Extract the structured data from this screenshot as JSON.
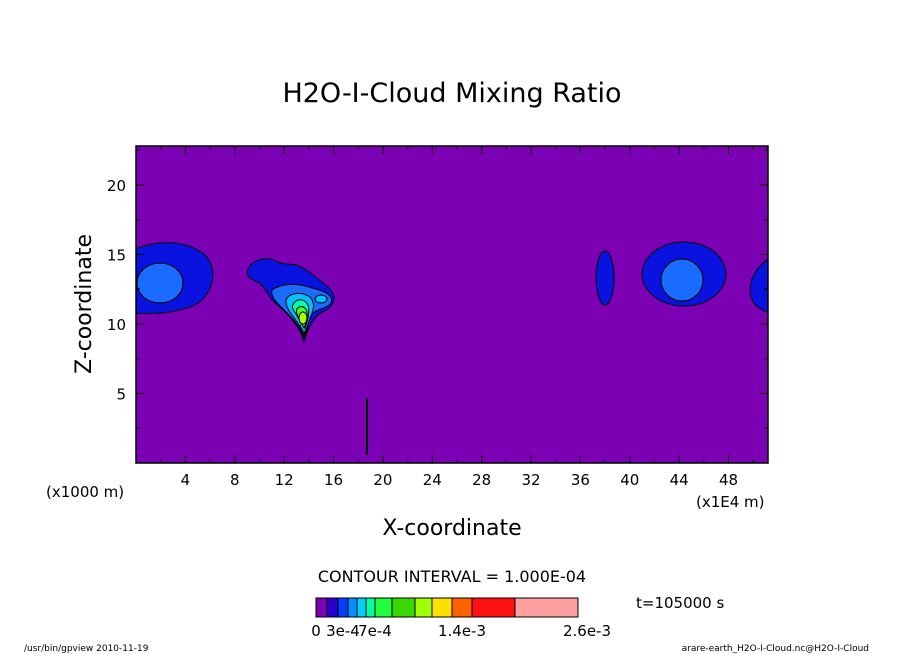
{
  "chart_data": {
    "type": "contour",
    "title": "H2O-I-Cloud Mixing Ratio",
    "xlabel": "X-coordinate",
    "ylabel": "Z-coordinate",
    "x_unit": "(x1E4 m)",
    "y_unit": "(x1000 m)",
    "x_ticks": [
      4,
      8,
      12,
      16,
      20,
      24,
      28,
      32,
      36,
      40,
      44,
      48
    ],
    "y_ticks": [
      5,
      10,
      15,
      20
    ],
    "xlim": [
      0,
      51.2
    ],
    "ylim": [
      0,
      22.8
    ],
    "contour_interval": "CONTOUR INTERVAL = 1.000E-04",
    "time_label": "t=105000 s",
    "colorbar": {
      "labels": [
        "0",
        "3e-4",
        "7e-4",
        "1.4e-3",
        "2.6e-3"
      ],
      "colors": [
        "#7c00b4",
        "#2800d0",
        "#0040ff",
        "#0090ff",
        "#00d0ff",
        "#00ffa0",
        "#20ff40",
        "#38d800",
        "#a0ff00",
        "#ffe000",
        "#ff6000",
        "#ff1010",
        "#ffa0a0"
      ]
    },
    "field_levels": {
      "background": "#7c00b4",
      "level1": "#0a12e0",
      "level2": "#1a6cff",
      "level3": "#00c0ff",
      "level4": "#00ffb0",
      "level5": "#40ff20",
      "level6": "#b0ff00"
    },
    "cloud_regions": [
      {
        "name": "left-edge-cloud",
        "x_range": [
          0,
          6.5
        ],
        "z_range": [
          11,
          16.4
        ]
      },
      {
        "name": "central-cloud",
        "x_range": [
          9,
          16
        ],
        "z_range": [
          9,
          15.2
        ]
      },
      {
        "name": "narrow-cloud",
        "x_range": [
          37.5,
          38.8
        ],
        "z_range": [
          11.5,
          15.2
        ]
      },
      {
        "name": "right-cloud",
        "x_range": [
          41,
          47
        ],
        "z_range": [
          11.3,
          16
        ]
      },
      {
        "name": "right-edge-cloud",
        "x_range": [
          49.5,
          51.2
        ],
        "z_range": [
          11,
          15
        ]
      }
    ]
  },
  "footer": {
    "left": "/usr/bin/gpview   2010-11-19",
    "right": "arare-earth_H2O-I-Cloud.nc@H2O-I-Cloud"
  }
}
